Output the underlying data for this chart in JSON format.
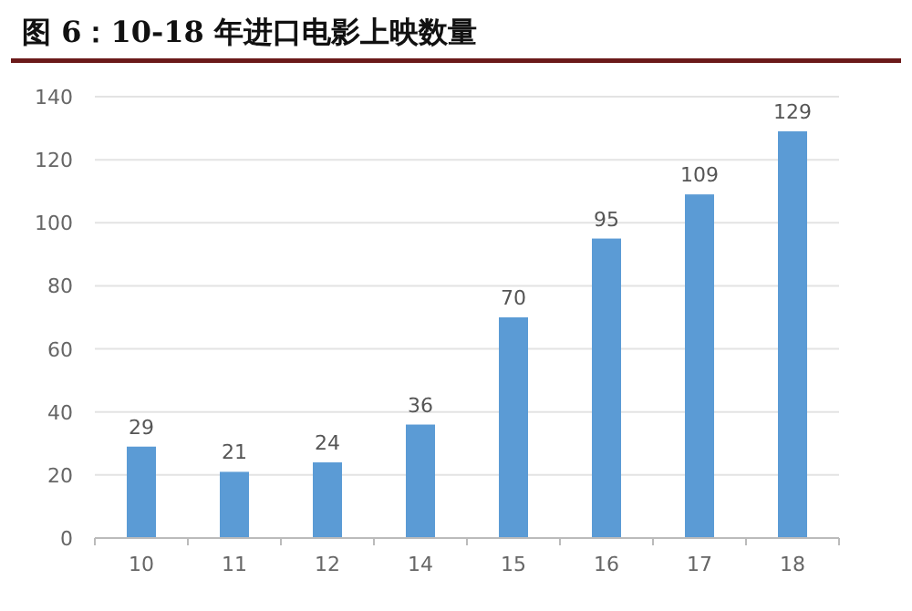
{
  "chart_data": {
    "type": "bar",
    "title": "图 6：10-18 年进口电影上映数量",
    "categories": [
      "10",
      "11",
      "12",
      "14",
      "15",
      "16",
      "17",
      "18"
    ],
    "values": [
      29,
      21,
      24,
      36,
      70,
      95,
      109,
      129
    ],
    "color": "#5b9bd5",
    "ylim": [
      0,
      140
    ],
    "yticks": [
      0,
      20,
      40,
      60,
      80,
      100,
      120,
      140
    ],
    "grid": "y",
    "data_labels": true
  }
}
